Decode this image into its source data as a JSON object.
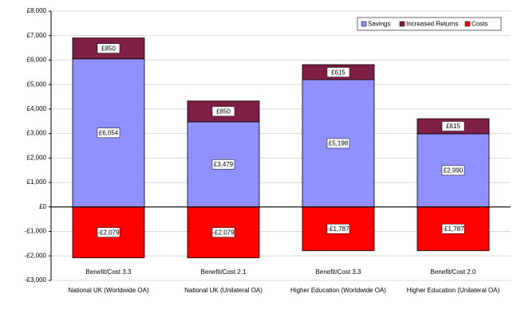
{
  "chart_data": {
    "type": "stacked_bar",
    "categories": [
      "National UK (Worldwide OA)",
      "National UK (Unilateral OA)",
      "Higher Education (Worldwide OA)",
      "Higher Education (Unilateral OA)"
    ],
    "annotations": [
      "Benefit/Cost 3.3",
      "Benefit/Cost 2.1",
      "Benefit/Cost 3.3",
      "Benefit/Cost 2.0"
    ],
    "series": [
      {
        "name": "Savings",
        "color": "#9090ff",
        "values": [
          6054,
          3479,
          5198,
          2990
        ],
        "value_labels": [
          "£6,054",
          "£3,479",
          "£5,198",
          "£2,990"
        ]
      },
      {
        "name": "Increased Returns",
        "color": "#7f1f45",
        "values": [
          850,
          850,
          615,
          615
        ],
        "value_labels": [
          "£850",
          "£850",
          "£615",
          "£615"
        ]
      },
      {
        "name": "Costs",
        "color": "#ff0000",
        "values": [
          -2079,
          -2079,
          -1787,
          -1787
        ],
        "value_labels": [
          "-£2,079",
          "-£2,079",
          "-£1,787",
          "-£1,787"
        ]
      }
    ],
    "ylim": [
      -3000,
      8000
    ],
    "yticks": [
      {
        "value": -3000,
        "label": "-£3,000"
      },
      {
        "value": -2000,
        "label": "-£2,000"
      },
      {
        "value": -1000,
        "label": "-£1,000"
      },
      {
        "value": 0,
        "label": "£0"
      },
      {
        "value": 1000,
        "label": "£1,000"
      },
      {
        "value": 2000,
        "label": "£2,000"
      },
      {
        "value": 3000,
        "label": "£3,000"
      },
      {
        "value": 4000,
        "label": "£4,000"
      },
      {
        "value": 5000,
        "label": "£5,000"
      },
      {
        "value": 6000,
        "label": "£6,000"
      },
      {
        "value": 7000,
        "label": "£7,000"
      },
      {
        "value": 8000,
        "label": "£8,000"
      }
    ],
    "grid": true,
    "legend": "upper right"
  }
}
